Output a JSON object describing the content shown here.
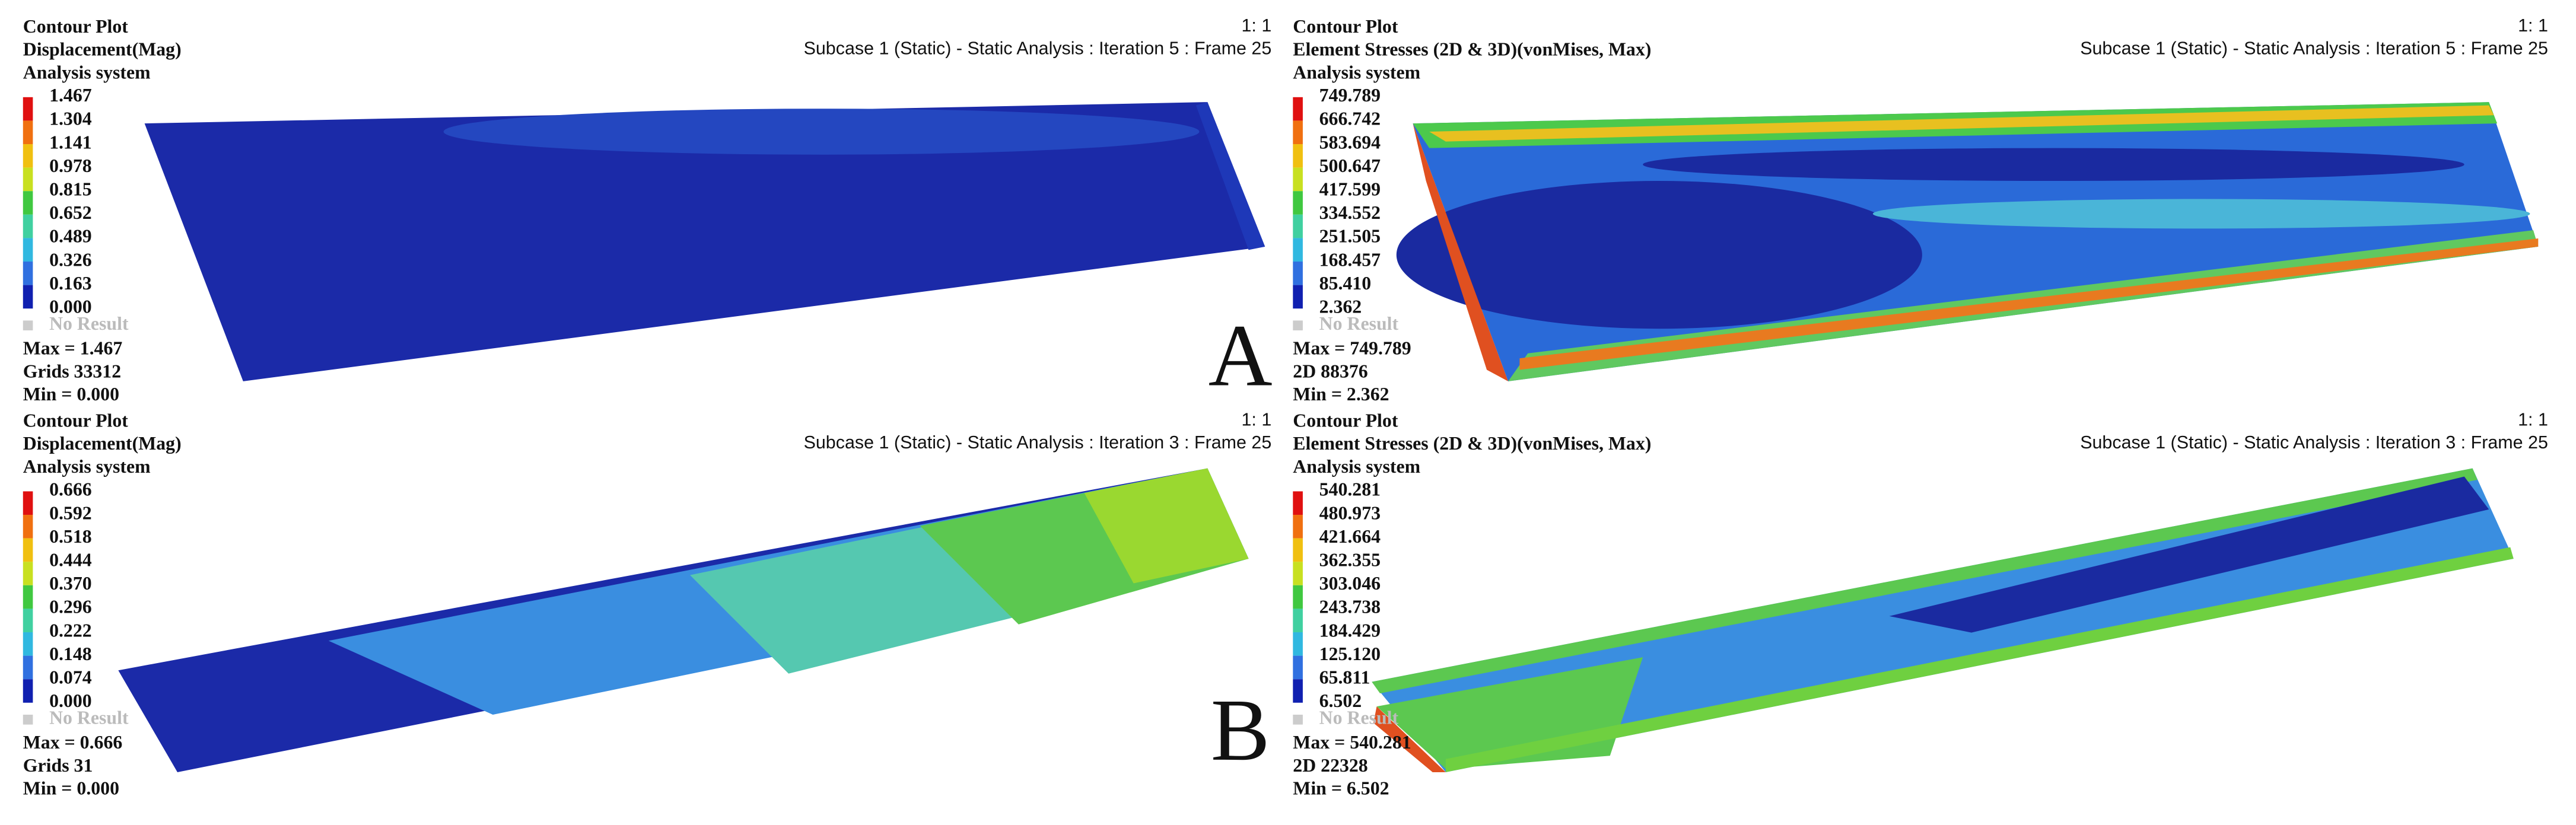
{
  "panels": [
    {
      "title": "Contour Plot",
      "result": "Displacement(Mag)",
      "system": "Analysis system",
      "subcase": "Subcase 1 (Static) - Static Analysis : Iteration 5 : Frame 25",
      "scale": "1: 1",
      "legend": [
        "1.467",
        "1.304",
        "1.141",
        "0.978",
        "0.815",
        "0.652",
        "0.489",
        "0.326",
        "0.163",
        "0.000"
      ],
      "no_result": "No Result",
      "max": "Max = 1.467",
      "entity": "Grids 33312",
      "min": "Min = 0.000"
    },
    {
      "title": "Contour Plot",
      "result": "Element Stresses (2D & 3D)(vonMises, Max)",
      "system": "Analysis system",
      "subcase": "Subcase 1 (Static) - Static Analysis : Iteration 5 : Frame 25",
      "scale": "1: 1",
      "legend": [
        "749.789",
        "666.742",
        "583.694",
        "500.647",
        "417.599",
        "334.552",
        "251.505",
        "168.457",
        "85.410",
        "2.362"
      ],
      "no_result": "No Result",
      "max": "Max = 749.789",
      "entity": "2D 88376",
      "min": "Min = 2.362"
    },
    {
      "title": "Contour Plot",
      "result": "Displacement(Mag)",
      "system": "Analysis system",
      "subcase": "Subcase 1 (Static) - Static Analysis : Iteration 3 : Frame 25",
      "scale": "1: 1",
      "legend": [
        "0.666",
        "0.592",
        "0.518",
        "0.444",
        "0.370",
        "0.296",
        "0.222",
        "0.148",
        "0.074",
        "0.000"
      ],
      "no_result": "No Result",
      "max": "Max = 0.666",
      "entity": "Grids 31",
      "min": "Min = 0.000"
    },
    {
      "title": "Contour Plot",
      "result": "Element Stresses (2D & 3D)(vonMises, Max)",
      "system": "Analysis system",
      "subcase": "Subcase 1 (Static) - Static Analysis : Iteration 3 : Frame 25",
      "scale": "1: 1",
      "legend": [
        "540.281",
        "480.973",
        "421.664",
        "362.355",
        "303.046",
        "243.738",
        "184.429",
        "125.120",
        "65.811",
        "6.502"
      ],
      "no_result": "No Result",
      "max": "Max = 540.281",
      "entity": "2D 22328",
      "min": "Min = 6.502"
    }
  ],
  "labels": [
    "A",
    "B"
  ]
}
